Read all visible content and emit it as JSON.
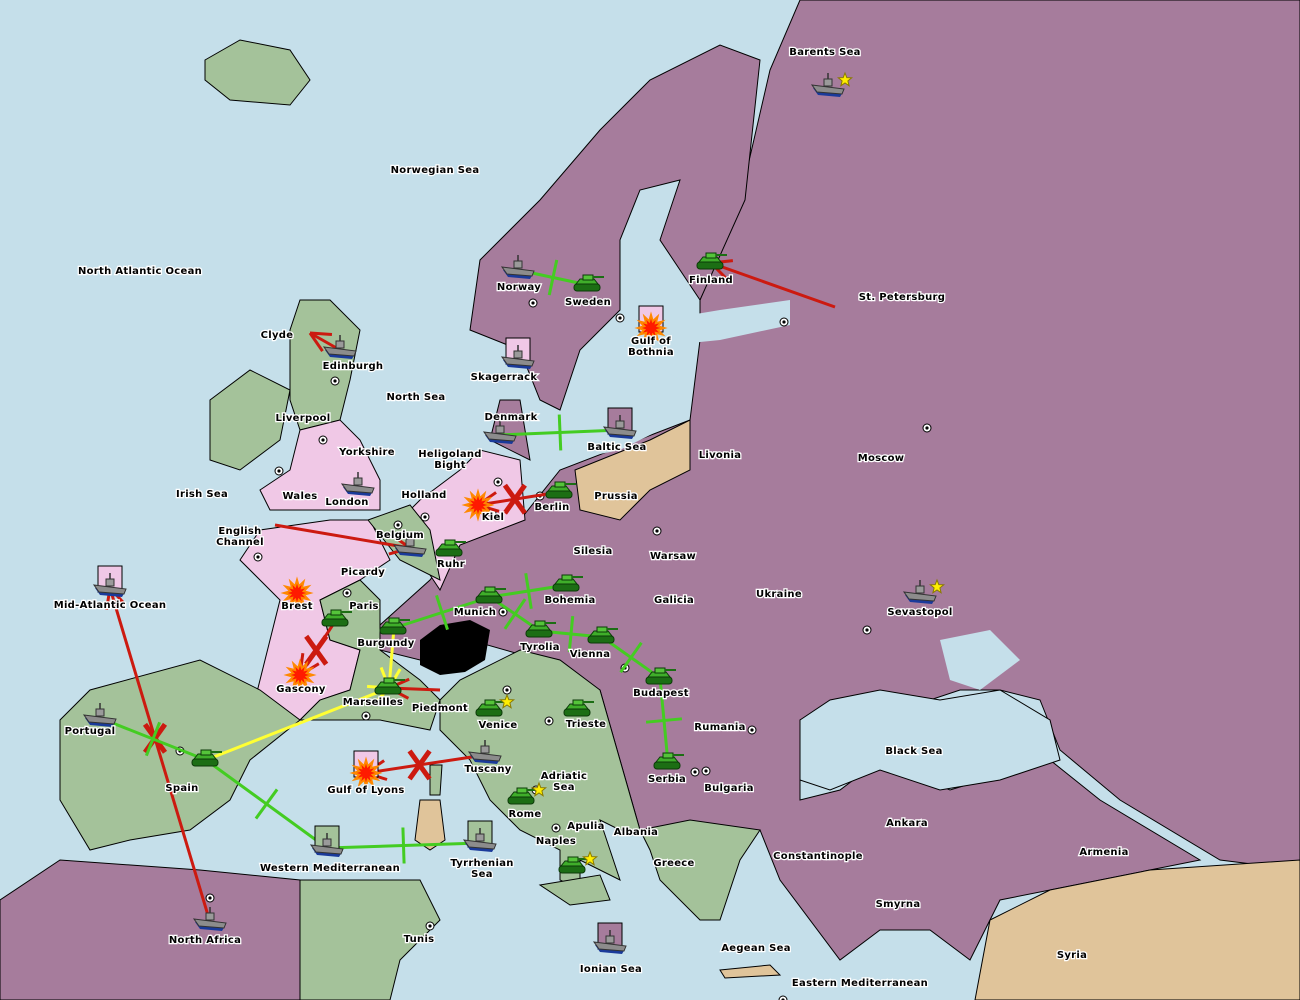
{
  "colors": {
    "sea": "#c5dfea",
    "purple_power": "#a67c9c",
    "pink_power": "#f0c8e6",
    "green_power": "#a4c29a",
    "neutral": "#e0c49a",
    "impassable": "#000000",
    "order_move_failed": "#cc1a10",
    "order_support": "#44cc22",
    "order_convoy_or_other": "#ffff33"
  },
  "provinces": [
    "Barents Sea",
    "Norwegian Sea",
    "North Atlantic Ocean",
    "Norway",
    "Sweden",
    "Finland",
    "St. Petersburg",
    "Clyde",
    "Edinburgh",
    "Gulf of Bothnia",
    "Skagerrack",
    "North Sea",
    "Liverpool",
    "Denmark",
    "Baltic Sea",
    "Livonia",
    "Moscow",
    "Heligoland Bight",
    "Yorkshire",
    "Irish Sea",
    "Wales",
    "London",
    "Holland",
    "Kiel",
    "Berlin",
    "Prussia",
    "English Channel",
    "Belgium",
    "Ruhr",
    "Silesia",
    "Warsaw",
    "Picardy",
    "Mid-Atlantic Ocean",
    "Brest",
    "Paris",
    "Munich",
    "Bohemia",
    "Galicia",
    "Ukraine",
    "Sevastopol",
    "Burgundy",
    "Tyrolia",
    "Vienna",
    "Gascony",
    "Budapest",
    "Marseilles",
    "Piedmont",
    "Portugal",
    "Venice",
    "Trieste",
    "Rumania",
    "Black Sea",
    "Tuscany",
    "Adriatic Sea",
    "Gulf of Lyons",
    "Spain",
    "Serbia",
    "Bulgaria",
    "Rome",
    "Apulia",
    "Ankara",
    "Albania",
    "Naples",
    "Armenia",
    "Constantinople",
    "Western Mediterranean",
    "Tyrrhenian Sea",
    "Greece",
    "Smyrna",
    "North Africa",
    "Tunis",
    "Aegean Sea",
    "Syria",
    "Ionian Sea",
    "Eastern Mediterranean"
  ],
  "units": [
    {
      "type": "fleet",
      "province": "Barents Sea",
      "star": true
    },
    {
      "type": "army",
      "province": "Finland"
    },
    {
      "type": "army",
      "province": "Sweden"
    },
    {
      "type": "fleet",
      "province": "Norway"
    },
    {
      "type": "fleet",
      "province": "Edinburgh"
    },
    {
      "type": "dislodged",
      "province": "Gulf of Bothnia",
      "box": "#f0c8e6"
    },
    {
      "type": "fleet",
      "province": "Skagerrack",
      "box": "#f0c8e6"
    },
    {
      "type": "fleet",
      "province": "Denmark"
    },
    {
      "type": "fleet",
      "province": "Baltic Sea",
      "box": "#a67c9c"
    },
    {
      "type": "fleet",
      "province": "London"
    },
    {
      "type": "army",
      "province": "Berlin"
    },
    {
      "type": "dislodged",
      "province": "Kiel"
    },
    {
      "type": "fleet",
      "province": "Belgium"
    },
    {
      "type": "army",
      "province": "Ruhr"
    },
    {
      "type": "army",
      "province": "Munich"
    },
    {
      "type": "army",
      "province": "Bohemia"
    },
    {
      "type": "army",
      "province": "Tyrolia"
    },
    {
      "type": "army",
      "province": "Vienna"
    },
    {
      "type": "army",
      "province": "Budapest"
    },
    {
      "type": "army",
      "province": "Burgundy"
    },
    {
      "type": "army",
      "province": "Paris"
    },
    {
      "type": "dislodged",
      "province": "Brest"
    },
    {
      "type": "dislodged",
      "province": "Gascony"
    },
    {
      "type": "army",
      "province": "Marseilles"
    },
    {
      "type": "army",
      "province": "Venice",
      "star": true
    },
    {
      "type": "army",
      "province": "Trieste"
    },
    {
      "type": "fleet",
      "province": "Tuscany"
    },
    {
      "type": "dislodged",
      "province": "Gulf of Lyons",
      "box": "#f0c8e6"
    },
    {
      "type": "army",
      "province": "Spain"
    },
    {
      "type": "fleet",
      "province": "Portugal"
    },
    {
      "type": "army",
      "province": "Serbia"
    },
    {
      "type": "army",
      "province": "Rome",
      "star": true
    },
    {
      "type": "army",
      "province": "Naples",
      "star": true
    },
    {
      "type": "fleet",
      "province": "Western Mediterranean",
      "box": "#a4c29a"
    },
    {
      "type": "fleet",
      "province": "Tyrrhenian Sea",
      "box": "#a4c29a"
    },
    {
      "type": "fleet",
      "province": "North Africa"
    },
    {
      "type": "fleet",
      "province": "Mid-Atlantic Ocean",
      "box": "#f0c8e6"
    },
    {
      "type": "fleet",
      "province": "Ionian Sea",
      "box": "#a67c9c"
    },
    {
      "type": "fleet",
      "province": "Sevastopol",
      "star": true
    }
  ],
  "orders": [
    {
      "from": "St. Petersburg",
      "to": "Finland",
      "kind": "move"
    },
    {
      "from": "Edinburgh",
      "to": "Clyde",
      "kind": "move"
    },
    {
      "from": "Berlin",
      "to": "Kiel",
      "kind": "move",
      "failed": true
    },
    {
      "from": "English Channel",
      "to": "Belgium",
      "kind": "move"
    },
    {
      "from": "Paris",
      "to": "Gascony",
      "kind": "move",
      "failed": true
    },
    {
      "from": "Piedmont",
      "to": "Marseilles",
      "kind": "move"
    },
    {
      "from": "Tuscany",
      "to": "Gulf of Lyons",
      "kind": "move",
      "failed": true
    },
    {
      "from": "North Africa",
      "to": "Mid-Atlantic Ocean",
      "kind": "move",
      "failed": true
    },
    {
      "from": "Norway",
      "to": "Sweden",
      "kind": "support"
    },
    {
      "from": "Denmark",
      "to": "Baltic Sea",
      "kind": "support"
    },
    {
      "from": "Burgundy",
      "to": "Munich",
      "kind": "support"
    },
    {
      "from": "Munich",
      "to": "Bohemia",
      "kind": "support"
    },
    {
      "from": "Munich",
      "to": "Tyrolia",
      "kind": "support"
    },
    {
      "from": "Tyrolia",
      "to": "Vienna",
      "kind": "support"
    },
    {
      "from": "Vienna",
      "to": "Budapest",
      "kind": "support"
    },
    {
      "from": "Serbia",
      "to": "Budapest",
      "kind": "support"
    },
    {
      "from": "Portugal",
      "to": "Spain",
      "kind": "support"
    },
    {
      "from": "Spain",
      "to": "Western Mediterranean",
      "kind": "support"
    },
    {
      "from": "Western Mediterranean",
      "to": "Tyrrhenian Sea",
      "kind": "support"
    },
    {
      "from": "Burgundy",
      "to": "Marseilles",
      "kind": "other"
    },
    {
      "from": "Spain",
      "to": "Marseilles",
      "kind": "other"
    }
  ]
}
